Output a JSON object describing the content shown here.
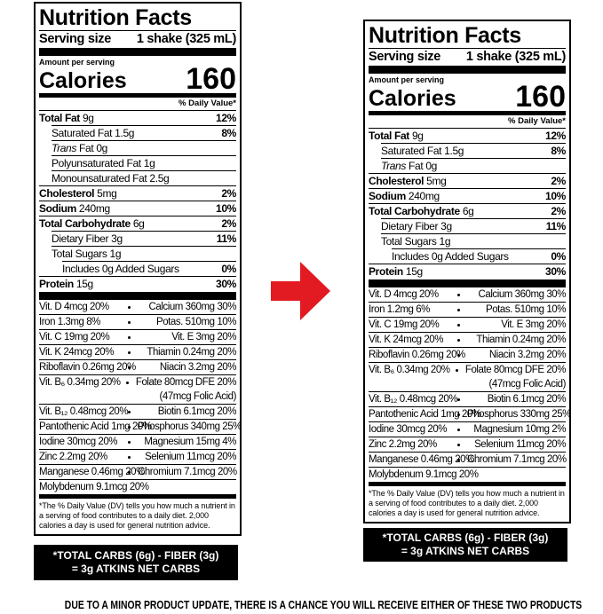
{
  "labels": [
    {
      "title": "Nutrition Facts",
      "serving_size": {
        "label": "Serving size",
        "value": "1 shake (325 mL)"
      },
      "amount_per_serving": "Amount per serving",
      "calories": {
        "label": "Calories",
        "value": "160"
      },
      "daily_value_header": "% Daily Value*",
      "nutrients": [
        {
          "name": "Total Fat",
          "amount": "9g",
          "dv": "12%",
          "sub": [
            {
              "name": "Saturated Fat",
              "amount": "1.5g",
              "dv": "8%"
            },
            {
              "prefix": "Trans",
              "name": "Fat",
              "amount": "0g"
            },
            {
              "name": "Polyunsaturated Fat",
              "amount": "1g"
            },
            {
              "name": "Monounsaturated Fat",
              "amount": "2.5g"
            }
          ]
        },
        {
          "name": "Cholesterol",
          "amount": "5mg",
          "dv": "2%"
        },
        {
          "name": "Sodium",
          "amount": "240mg",
          "dv": "10%"
        },
        {
          "name": "Total Carbohydrate",
          "amount": "6g",
          "dv": "2%",
          "sub": [
            {
              "name": "Dietary Fiber",
              "amount": "3g",
              "dv": "11%"
            },
            {
              "name": "Total Sugars",
              "amount": "1g",
              "sub": [
                {
                  "name": "Includes 0g Added Sugars",
                  "dv": "0%"
                }
              ]
            }
          ]
        },
        {
          "name": "Protein",
          "amount": "15g",
          "dv": "30%"
        }
      ],
      "vitamins": [
        {
          "left": "Vit. D 4mcg 20%",
          "right": "Calcium 360mg 30%"
        },
        {
          "left": "Iron 1.3mg 8%",
          "right": "Potas. 510mg 10%"
        },
        {
          "left": "Vit. C 19mg 20%",
          "right": "Vit. E 3mg 20%"
        },
        {
          "left": "Vit. K 24mcg 20%",
          "right": "Thiamin 0.24mg 20%"
        },
        {
          "left": "Riboflavin 0.26mg 20%",
          "right": "Niacin 3.2mg 20%"
        },
        {
          "left": "Vit. B₆ 0.34mg 20%",
          "right": "Folate 80mcg DFE 20%",
          "right_note": "(47mcg Folic Acid)"
        },
        {
          "left": "Vit. B₁₂ 0.48mcg 20%",
          "right": "Biotin 6.1mcg 20%"
        },
        {
          "left": "Pantothenic Acid 1mg 20%",
          "right": "Phosphorus 340mg 25%"
        },
        {
          "left": "Iodine 30mcg 20%",
          "right": "Magnesium 15mg 4%"
        },
        {
          "left": "Zinc 2.2mg 20%",
          "right": "Selenium 11mcg 20%"
        },
        {
          "left": "Manganese 0.46mg 20%",
          "right": "Chromium 7.1mcg 20%"
        },
        {
          "left": "Molybdenum 9.1mcg 20%"
        }
      ],
      "footnote": "*The % Daily Value (DV) tells you how much a nutrient in a serving of food contributes to a daily diet. 2,000 calories a day is used for general nutrition advice.",
      "net_carbs": [
        "*TOTAL CARBS (6g) - FIBER (3g)",
        "= 3g ATKINS NET CARBS"
      ]
    },
    {
      "title": "Nutrition Facts",
      "serving_size": {
        "label": "Serving size",
        "value": "1 shake (325 mL)"
      },
      "amount_per_serving": "Amount per serving",
      "calories": {
        "label": "Calories",
        "value": "160"
      },
      "daily_value_header": "% Daily Value*",
      "nutrients": [
        {
          "name": "Total Fat",
          "amount": "9g",
          "dv": "12%",
          "sub": [
            {
              "name": "Saturated Fat",
              "amount": "1.5g",
              "dv": "8%"
            },
            {
              "prefix": "Trans",
              "name": "Fat",
              "amount": "0g"
            }
          ]
        },
        {
          "name": "Cholesterol",
          "amount": "5mg",
          "dv": "2%"
        },
        {
          "name": "Sodium",
          "amount": "240mg",
          "dv": "10%"
        },
        {
          "name": "Total Carbohydrate",
          "amount": "6g",
          "dv": "2%",
          "sub": [
            {
              "name": "Dietary Fiber",
              "amount": "3g",
              "dv": "11%"
            },
            {
              "name": "Total Sugars",
              "amount": "1g",
              "sub": [
                {
                  "name": "Includes 0g Added Sugars",
                  "dv": "0%"
                }
              ]
            }
          ]
        },
        {
          "name": "Protein",
          "amount": "15g",
          "dv": "30%"
        }
      ],
      "vitamins": [
        {
          "left": "Vit. D 4mcg 20%",
          "right": "Calcium 360mg 30%"
        },
        {
          "left": "Iron 1.2mg 6%",
          "right": "Potas. 510mg 10%"
        },
        {
          "left": "Vit. C 19mg 20%",
          "right": "Vit. E 3mg 20%"
        },
        {
          "left": "Vit. K 24mcg 20%",
          "right": "Thiamin 0.24mg 20%"
        },
        {
          "left": "Riboflavin 0.26mg 20%",
          "right": "Niacin 3.2mg 20%"
        },
        {
          "left": "Vit. B₆ 0.34mg 20%",
          "right": "Folate 80mcg DFE 20%",
          "right_note": "(47mcg Folic Acid)"
        },
        {
          "left": "Vit. B₁₂ 0.48mcg 20%",
          "right": "Biotin 6.1mcg 20%"
        },
        {
          "left": "Pantothenic Acid 1mg 20%",
          "right": "Phosphorus 330mg 25%"
        },
        {
          "left": "Iodine 30mcg 20%",
          "right": "Magnesium 10mg 2%"
        },
        {
          "left": "Zinc 2.2mg 20%",
          "right": "Selenium 11mcg 20%"
        },
        {
          "left": "Manganese 0.46mg 20%",
          "right": "Chromium 7.1mcg 20%"
        },
        {
          "left": "Molybdenum 9.1mcg 20%"
        }
      ],
      "footnote": "*The % Daily Value (DV) tells you how much a nutrient in a serving of food contributes to a daily diet. 2,000 calories a day is used for general nutrition advice.",
      "net_carbs": [
        "*TOTAL CARBS (6g) - FIBER (3g)",
        "= 3g ATKINS NET CARBS"
      ]
    }
  ],
  "footer": "DUE TO A MINOR PRODUCT UPDATE, THERE IS A CHANCE YOU WILL RECEIVE EITHER OF THESE TWO PRODUCTS"
}
